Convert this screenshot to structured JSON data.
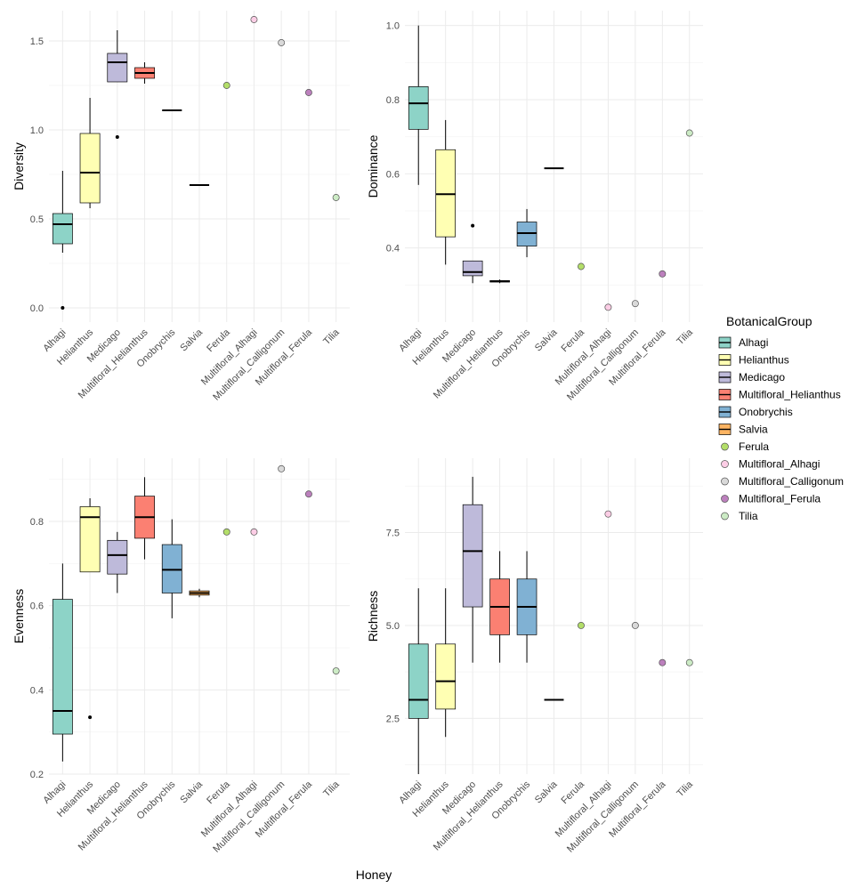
{
  "x_title": "Honey",
  "legend": {
    "title": "BotanicalGroup",
    "box_entries": [
      {
        "name": "Alhagi",
        "color": "#8DD3C7"
      },
      {
        "name": "Helianthus",
        "color": "#FFFFB3"
      },
      {
        "name": "Medicago",
        "color": "#BEBADA"
      },
      {
        "name": "Multifloral_Helianthus",
        "color": "#FB8072"
      },
      {
        "name": "Onobrychis",
        "color": "#80B1D3"
      },
      {
        "name": "Salvia",
        "color": "#FDB462"
      }
    ],
    "point_entries": [
      {
        "name": "Ferula",
        "color": "#B3DE69"
      },
      {
        "name": "Multifloral_Alhagi",
        "color": "#FCCDE5"
      },
      {
        "name": "Multifloral_Calligonum",
        "color": "#D9D9D9"
      },
      {
        "name": "Multifloral_Ferula",
        "color": "#BC80BD"
      },
      {
        "name": "Tilia",
        "color": "#CCEBC5"
      }
    ]
  },
  "chart_data": [
    {
      "type": "box",
      "ylabel": "Diversity",
      "categories": [
        "Alhagi",
        "Helianthus",
        "Medicago",
        "Multifloral_Helianthus",
        "Onobrychis",
        "Salvia",
        "Ferula",
        "Multifloral_Alhagi",
        "Multifloral_Calligonum",
        "Multifloral_Ferula",
        "Tilia"
      ],
      "ylim": [
        -0.08,
        1.67
      ],
      "yticks": [
        0.0,
        0.5,
        1.0,
        1.5
      ],
      "ytick_labels": [
        "0.0",
        "0.5",
        "1.0",
        "1.5"
      ],
      "boxes": [
        {
          "name": "Alhagi",
          "min": 0.31,
          "q1": 0.36,
          "median": 0.47,
          "q3": 0.53,
          "max": 0.77,
          "outliers": [
            0.0
          ]
        },
        {
          "name": "Helianthus",
          "min": 0.56,
          "q1": 0.59,
          "median": 0.76,
          "q3": 0.98,
          "max": 1.18,
          "outliers": []
        },
        {
          "name": "Medicago",
          "min": 1.27,
          "q1": 1.27,
          "median": 1.38,
          "q3": 1.43,
          "max": 1.56,
          "outliers": [
            0.96
          ]
        },
        {
          "name": "Multifloral_Helianthus",
          "min": 1.26,
          "q1": 1.29,
          "median": 1.32,
          "q3": 1.35,
          "max": 1.38,
          "outliers": []
        },
        {
          "name": "Onobrychis",
          "min": 1.11,
          "q1": 1.11,
          "median": 1.11,
          "q3": 1.11,
          "max": 1.11,
          "outliers": []
        },
        {
          "name": "Salvia",
          "min": 0.69,
          "q1": 0.69,
          "median": 0.69,
          "q3": 0.69,
          "max": 0.69,
          "outliers": []
        }
      ],
      "points": [
        {
          "name": "Ferula",
          "value": 1.25
        },
        {
          "name": "Multifloral_Alhagi",
          "value": 1.62
        },
        {
          "name": "Multifloral_Calligonum",
          "value": 1.49
        },
        {
          "name": "Multifloral_Ferula",
          "value": 1.21
        },
        {
          "name": "Tilia",
          "value": 0.62
        }
      ]
    },
    {
      "type": "box",
      "ylabel": "Dominance",
      "categories": [
        "Alhagi",
        "Helianthus",
        "Medicago",
        "Multifloral_Helianthus",
        "Onobrychis",
        "Salvia",
        "Ferula",
        "Multifloral_Alhagi",
        "Multifloral_Calligonum",
        "Multifloral_Ferula",
        "Tilia"
      ],
      "ylim": [
        0.2,
        1.04
      ],
      "yticks": [
        0.4,
        0.6,
        0.8,
        1.0
      ],
      "ytick_labels": [
        "0.4",
        "0.6",
        "0.8",
        "1.0"
      ],
      "boxes": [
        {
          "name": "Alhagi",
          "min": 0.57,
          "q1": 0.72,
          "median": 0.79,
          "q3": 0.835,
          "max": 1.0,
          "outliers": []
        },
        {
          "name": "Helianthus",
          "min": 0.355,
          "q1": 0.43,
          "median": 0.545,
          "q3": 0.665,
          "max": 0.745,
          "outliers": []
        },
        {
          "name": "Medicago",
          "min": 0.305,
          "q1": 0.325,
          "median": 0.335,
          "q3": 0.365,
          "max": 0.365,
          "outliers": [
            0.46
          ]
        },
        {
          "name": "Multifloral_Helianthus",
          "min": 0.305,
          "q1": 0.308,
          "median": 0.31,
          "q3": 0.312,
          "max": 0.315,
          "outliers": []
        },
        {
          "name": "Onobrychis",
          "min": 0.375,
          "q1": 0.405,
          "median": 0.44,
          "q3": 0.47,
          "max": 0.505,
          "outliers": []
        },
        {
          "name": "Salvia",
          "min": 0.615,
          "q1": 0.615,
          "median": 0.615,
          "q3": 0.615,
          "max": 0.615,
          "outliers": []
        }
      ],
      "points": [
        {
          "name": "Ferula",
          "value": 0.35
        },
        {
          "name": "Multifloral_Alhagi",
          "value": 0.24
        },
        {
          "name": "Multifloral_Calligonum",
          "value": 0.25
        },
        {
          "name": "Multifloral_Ferula",
          "value": 0.33
        },
        {
          "name": "Tilia",
          "value": 0.71
        }
      ]
    },
    {
      "type": "box",
      "ylabel": "Evenness",
      "categories": [
        "Alhagi",
        "Helianthus",
        "Medicago",
        "Multifloral_Helianthus",
        "Onobrychis",
        "Salvia",
        "Ferula",
        "Multifloral_Alhagi",
        "Multifloral_Calligonum",
        "Multifloral_Ferula",
        "Tilia"
      ],
      "ylim": [
        0.2,
        0.95
      ],
      "yticks": [
        0.2,
        0.4,
        0.6,
        0.8
      ],
      "ytick_labels": [
        "0.2",
        "0.4",
        "0.6",
        "0.8"
      ],
      "boxes": [
        {
          "name": "Alhagi",
          "min": 0.23,
          "q1": 0.295,
          "median": 0.35,
          "q3": 0.615,
          "max": 0.7,
          "outliers": []
        },
        {
          "name": "Helianthus",
          "min": 0.68,
          "q1": 0.68,
          "median": 0.81,
          "q3": 0.835,
          "max": 0.855,
          "outliers": [
            0.335
          ]
        },
        {
          "name": "Medicago",
          "min": 0.63,
          "q1": 0.675,
          "median": 0.72,
          "q3": 0.755,
          "max": 0.775,
          "outliers": []
        },
        {
          "name": "Multifloral_Helianthus",
          "min": 0.71,
          "q1": 0.76,
          "median": 0.81,
          "q3": 0.86,
          "max": 0.905,
          "outliers": []
        },
        {
          "name": "Onobrychis",
          "min": 0.57,
          "q1": 0.63,
          "median": 0.685,
          "q3": 0.745,
          "max": 0.805,
          "outliers": []
        },
        {
          "name": "Salvia",
          "min": 0.62,
          "q1": 0.625,
          "median": 0.63,
          "q3": 0.635,
          "max": 0.64,
          "outliers": []
        }
      ],
      "points": [
        {
          "name": "Ferula",
          "value": 0.775
        },
        {
          "name": "Multifloral_Alhagi",
          "value": 0.775
        },
        {
          "name": "Multifloral_Calligonum",
          "value": 0.925
        },
        {
          "name": "Multifloral_Ferula",
          "value": 0.865
        },
        {
          "name": "Tilia",
          "value": 0.445
        }
      ]
    },
    {
      "type": "box",
      "ylabel": "Richness",
      "categories": [
        "Alhagi",
        "Helianthus",
        "Medicago",
        "Multifloral_Helianthus",
        "Onobrychis",
        "Salvia",
        "Ferula",
        "Multifloral_Alhagi",
        "Multifloral_Calligonum",
        "Multifloral_Ferula",
        "Tilia"
      ],
      "ylim": [
        1.0,
        9.5
      ],
      "yticks": [
        2.5,
        5.0,
        7.5
      ],
      "ytick_labels": [
        "2.5",
        "5.0",
        "7.5"
      ],
      "boxes": [
        {
          "name": "Alhagi",
          "min": 1.0,
          "q1": 2.5,
          "median": 3.0,
          "q3": 4.5,
          "max": 6.0,
          "outliers": []
        },
        {
          "name": "Helianthus",
          "min": 2.0,
          "q1": 2.75,
          "median": 3.5,
          "q3": 4.5,
          "max": 6.0,
          "outliers": []
        },
        {
          "name": "Medicago",
          "min": 4.0,
          "q1": 5.5,
          "median": 7.0,
          "q3": 8.25,
          "max": 9.0,
          "outliers": []
        },
        {
          "name": "Multifloral_Helianthus",
          "min": 4.0,
          "q1": 4.75,
          "median": 5.5,
          "q3": 6.25,
          "max": 7.0,
          "outliers": []
        },
        {
          "name": "Onobrychis",
          "min": 4.0,
          "q1": 4.75,
          "median": 5.5,
          "q3": 6.25,
          "max": 7.0,
          "outliers": []
        },
        {
          "name": "Salvia",
          "min": 3.0,
          "q1": 3.0,
          "median": 3.0,
          "q3": 3.0,
          "max": 3.0,
          "outliers": []
        }
      ],
      "points": [
        {
          "name": "Ferula",
          "value": 5.0
        },
        {
          "name": "Multifloral_Alhagi",
          "value": 8.0
        },
        {
          "name": "Multifloral_Calligonum",
          "value": 5.0
        },
        {
          "name": "Multifloral_Ferula",
          "value": 4.0
        },
        {
          "name": "Tilia",
          "value": 4.0
        }
      ]
    }
  ]
}
